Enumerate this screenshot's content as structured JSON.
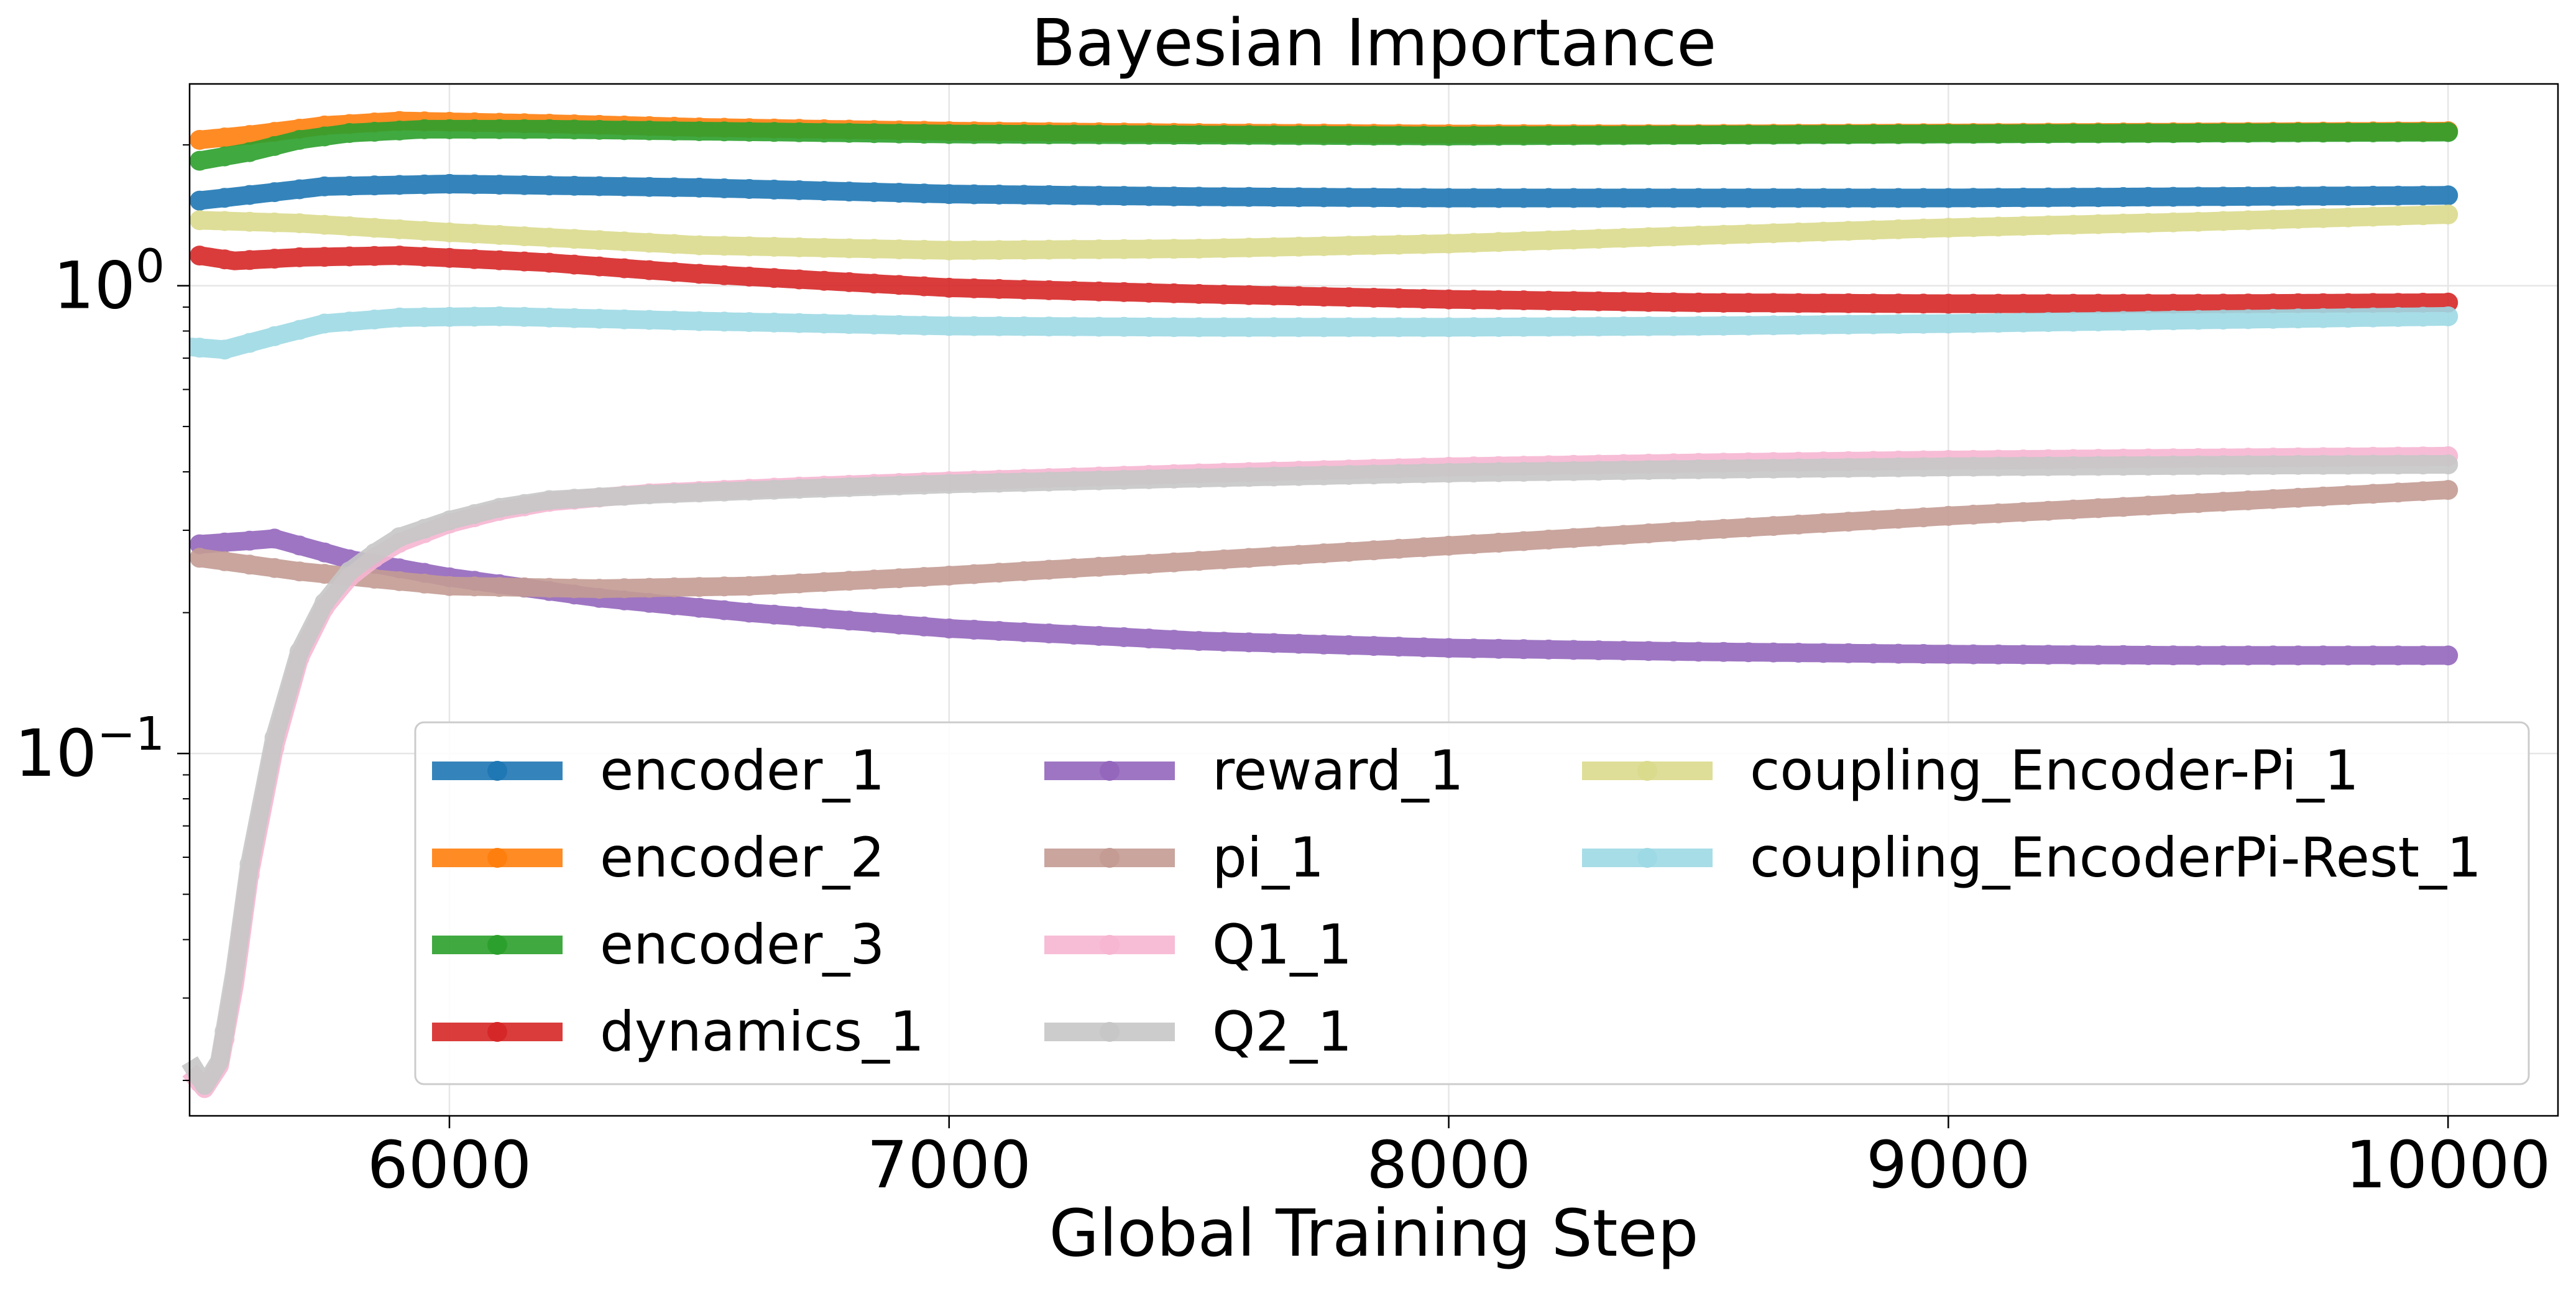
{
  "chart_data": {
    "type": "line",
    "title": "Bayesian Importance",
    "xlabel": "Global Training Step",
    "ylabel": "",
    "xlim": [
      5480,
      10220
    ],
    "ylim": [
      0.0168,
      2.7
    ],
    "yscale": "log",
    "grid": true,
    "legend": {
      "position": "lower-right",
      "columns": 3
    },
    "x_ticks": [
      {
        "value": 6000,
        "label": "6000"
      },
      {
        "value": 7000,
        "label": "7000"
      },
      {
        "value": 8000,
        "label": "8000"
      },
      {
        "value": 9000,
        "label": "9000"
      },
      {
        "value": 10000,
        "label": "10000"
      }
    ],
    "y_ticks": [
      {
        "value": 1.0,
        "base": "10",
        "exp": "0"
      },
      {
        "value": 0.1,
        "base": "10",
        "exp": "−1"
      }
    ],
    "series": [
      {
        "name": "encoder_1",
        "color": "#1f77b4",
        "points": [
          [
            5500,
            1.52
          ],
          [
            5750,
            1.63
          ],
          [
            6000,
            1.65
          ],
          [
            6500,
            1.62
          ],
          [
            7000,
            1.57
          ],
          [
            7500,
            1.55
          ],
          [
            8000,
            1.54
          ],
          [
            8500,
            1.54
          ],
          [
            9000,
            1.54
          ],
          [
            9500,
            1.55
          ],
          [
            10000,
            1.56
          ]
        ]
      },
      {
        "name": "encoder_2",
        "color": "#ff7f0e",
        "points": [
          [
            5500,
            2.05
          ],
          [
            5600,
            2.1
          ],
          [
            5750,
            2.2
          ],
          [
            5900,
            2.25
          ],
          [
            6200,
            2.22
          ],
          [
            6500,
            2.18
          ],
          [
            7000,
            2.14
          ],
          [
            7500,
            2.12
          ],
          [
            8000,
            2.11
          ],
          [
            8500,
            2.11
          ],
          [
            9000,
            2.12
          ],
          [
            9500,
            2.13
          ],
          [
            10000,
            2.14
          ]
        ]
      },
      {
        "name": "encoder_3",
        "color": "#2ca02c",
        "points": [
          [
            5500,
            1.85
          ],
          [
            5600,
            1.93
          ],
          [
            5700,
            2.05
          ],
          [
            5800,
            2.12
          ],
          [
            5950,
            2.16
          ],
          [
            6200,
            2.16
          ],
          [
            6500,
            2.14
          ],
          [
            7000,
            2.11
          ],
          [
            7500,
            2.1
          ],
          [
            8000,
            2.09
          ],
          [
            8500,
            2.1
          ],
          [
            9000,
            2.11
          ],
          [
            9500,
            2.12
          ],
          [
            10000,
            2.13
          ]
        ]
      },
      {
        "name": "dynamics_1",
        "color": "#d62728",
        "points": [
          [
            5500,
            1.16
          ],
          [
            5570,
            1.13
          ],
          [
            5700,
            1.15
          ],
          [
            5900,
            1.16
          ],
          [
            6200,
            1.12
          ],
          [
            6500,
            1.06
          ],
          [
            7000,
            0.99
          ],
          [
            7500,
            0.96
          ],
          [
            8000,
            0.935
          ],
          [
            8500,
            0.92
          ],
          [
            9000,
            0.915
          ],
          [
            9500,
            0.915
          ],
          [
            10000,
            0.92
          ]
        ]
      },
      {
        "name": "reward_1",
        "color": "#9467bd",
        "points": [
          [
            5500,
            0.28
          ],
          [
            5600,
            0.285
          ],
          [
            5650,
            0.288
          ],
          [
            5800,
            0.26
          ],
          [
            6000,
            0.238
          ],
          [
            6300,
            0.215
          ],
          [
            6600,
            0.2
          ],
          [
            7000,
            0.185
          ],
          [
            7500,
            0.174
          ],
          [
            8000,
            0.168
          ],
          [
            8500,
            0.165
          ],
          [
            9000,
            0.163
          ],
          [
            9500,
            0.162
          ],
          [
            10000,
            0.162
          ]
        ]
      },
      {
        "name": "pi_1",
        "color": "#c49c94",
        "points": [
          [
            5500,
            0.262
          ],
          [
            5700,
            0.245
          ],
          [
            6000,
            0.228
          ],
          [
            6300,
            0.225
          ],
          [
            6600,
            0.228
          ],
          [
            7000,
            0.24
          ],
          [
            7500,
            0.258
          ],
          [
            8000,
            0.278
          ],
          [
            8500,
            0.3
          ],
          [
            9000,
            0.322
          ],
          [
            9500,
            0.343
          ],
          [
            10000,
            0.366
          ]
        ]
      },
      {
        "name": "Q1_1",
        "color": "#f7b6d2",
        "points": [
          [
            5480,
            0.021
          ],
          [
            5510,
            0.0192
          ],
          [
            5540,
            0.0215
          ],
          [
            5570,
            0.032
          ],
          [
            5600,
            0.055
          ],
          [
            5650,
            0.103
          ],
          [
            5700,
            0.16
          ],
          [
            5750,
            0.205
          ],
          [
            5800,
            0.238
          ],
          [
            5850,
            0.262
          ],
          [
            5900,
            0.282
          ],
          [
            6000,
            0.31
          ],
          [
            6100,
            0.33
          ],
          [
            6200,
            0.345
          ],
          [
            6400,
            0.36
          ],
          [
            6700,
            0.372
          ],
          [
            7000,
            0.382
          ],
          [
            7500,
            0.397
          ],
          [
            8000,
            0.41
          ],
          [
            8500,
            0.418
          ],
          [
            9000,
            0.424
          ],
          [
            9500,
            0.428
          ],
          [
            10000,
            0.432
          ]
        ]
      },
      {
        "name": "Q2_1",
        "color": "#c7c7c7",
        "points": [
          [
            5480,
            0.022
          ],
          [
            5510,
            0.0195
          ],
          [
            5540,
            0.022
          ],
          [
            5570,
            0.034
          ],
          [
            5600,
            0.058
          ],
          [
            5650,
            0.108
          ],
          [
            5700,
            0.165
          ],
          [
            5750,
            0.21
          ],
          [
            5800,
            0.245
          ],
          [
            5850,
            0.268
          ],
          [
            5900,
            0.29
          ],
          [
            6000,
            0.315
          ],
          [
            6100,
            0.335
          ],
          [
            6200,
            0.348
          ],
          [
            6400,
            0.358
          ],
          [
            6700,
            0.368
          ],
          [
            7000,
            0.377
          ],
          [
            7500,
            0.388
          ],
          [
            8000,
            0.398
          ],
          [
            8500,
            0.405
          ],
          [
            9000,
            0.41
          ],
          [
            9500,
            0.413
          ],
          [
            10000,
            0.415
          ]
        ]
      },
      {
        "name": "coupling_Encoder-Pi_1",
        "color": "#dbdb8d",
        "points": [
          [
            5500,
            1.38
          ],
          [
            5700,
            1.36
          ],
          [
            6000,
            1.3
          ],
          [
            6500,
            1.22
          ],
          [
            7000,
            1.19
          ],
          [
            7500,
            1.2
          ],
          [
            8000,
            1.23
          ],
          [
            8500,
            1.28
          ],
          [
            9000,
            1.33
          ],
          [
            9500,
            1.37
          ],
          [
            10000,
            1.42
          ]
        ]
      },
      {
        "name": "coupling_EncoderPi-Rest_1",
        "color": "#9edae5",
        "points": [
          [
            5480,
            0.74
          ],
          [
            5550,
            0.73
          ],
          [
            5650,
            0.78
          ],
          [
            5750,
            0.83
          ],
          [
            5900,
            0.855
          ],
          [
            6100,
            0.86
          ],
          [
            6500,
            0.84
          ],
          [
            7000,
            0.82
          ],
          [
            7500,
            0.815
          ],
          [
            8000,
            0.815
          ],
          [
            8500,
            0.82
          ],
          [
            9000,
            0.83
          ],
          [
            9500,
            0.845
          ],
          [
            10000,
            0.86
          ]
        ]
      }
    ]
  }
}
